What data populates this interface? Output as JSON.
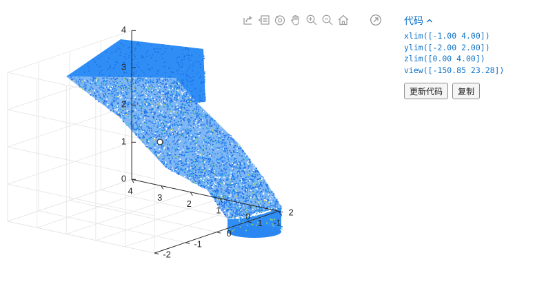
{
  "toolbar": {
    "icons": [
      "export-icon",
      "data-tips-icon",
      "rotate-3d-icon",
      "pan-icon",
      "zoom-in-icon",
      "zoom-out-icon",
      "home-icon"
    ],
    "expand_icon": "open-in-new-window-icon"
  },
  "code_panel": {
    "title": "代码",
    "toggle_icon": "chevron-up-icon",
    "lines": [
      "xlim([-1.00 4.00])",
      "ylim([-2.00 2.00])",
      "zlim([0.00 4.00])",
      "view([-150.85 23.28])"
    ],
    "update_button": "更新代码",
    "copy_button": "复制"
  },
  "chart_data": {
    "type": "scatter",
    "subtype": "3d-point-cloud",
    "title": "",
    "xlabel": "",
    "ylabel": "",
    "zlabel": "",
    "xlim": [
      -1,
      4
    ],
    "ylim": [
      -2,
      2
    ],
    "zlim": [
      0,
      4
    ],
    "view": [
      -150.85,
      23.28
    ],
    "x_ticks": [
      "-1",
      "0",
      "1",
      "2",
      "3",
      "4"
    ],
    "y_ticks": [
      "-2",
      "-1",
      "0",
      "1",
      "2"
    ],
    "z_ticks": [
      "0",
      "1",
      "2",
      "3",
      "4"
    ],
    "grid": true,
    "colormap_colors": [
      "#1f6fe8",
      "#2f8ef5",
      "#3aa0f0",
      "#4cc4d8",
      "#8fd07c",
      "#d4d43a"
    ],
    "shape": "chute / funnel surface: wide flat top at z≈4 narrowing to a circular outlet at z≈0"
  }
}
